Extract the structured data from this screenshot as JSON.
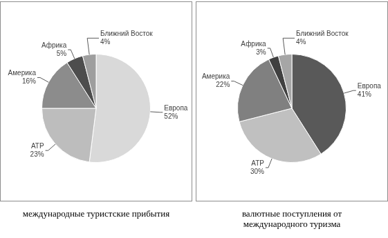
{
  "chart_data": [
    {
      "type": "pie",
      "title": "международные туристские прибытия",
      "categories": [
        "Европа",
        "АТР",
        "Америка",
        "Африка",
        "Ближний Восток"
      ],
      "values": [
        52,
        23,
        16,
        5,
        4
      ],
      "value_labels": [
        "52%",
        "23%",
        "16%",
        "5%",
        "4%"
      ],
      "colors": [
        "#d9d9d9",
        "#bdbdbd",
        "#8c8c8c",
        "#4d4d4d",
        "#9e9e9e"
      ],
      "data_labels": true
    },
    {
      "type": "pie",
      "title": "валютные поступления от международного туризма",
      "categories": [
        "Европа",
        "АТР",
        "Америка",
        "Африка",
        "Ближний Восток"
      ],
      "values": [
        41,
        30,
        22,
        3,
        4
      ],
      "value_labels": [
        "41%",
        "30%",
        "22%",
        "3%",
        "4%"
      ],
      "colors": [
        "#595959",
        "#c0c0c0",
        "#808080",
        "#404040",
        "#a6a6a6"
      ],
      "data_labels": true
    }
  ]
}
